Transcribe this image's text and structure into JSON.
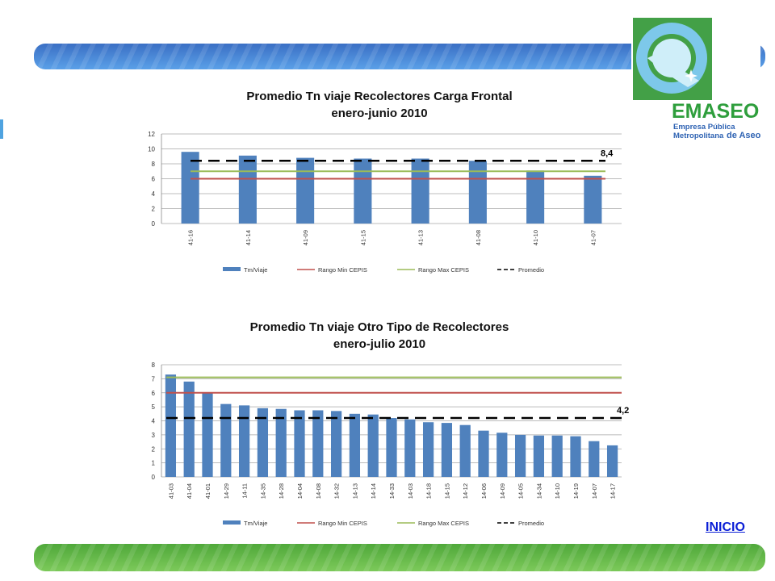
{
  "logo": {
    "name": "EMASEO",
    "line1": "Empresa Pública",
    "line2": "Metropolitana",
    "line2b": "de Aseo"
  },
  "nav": {
    "inicio": "INICIO"
  },
  "colors": {
    "bar": "#4f81bd",
    "min": "#c0504d",
    "max": "#9bbb59",
    "promedio": "#000000"
  },
  "chart_data": [
    {
      "type": "bar",
      "title": "Promedio Tn viaje Recolectores Carga Frontal",
      "subtitle": "enero-junio  2010",
      "categories": [
        "41-16",
        "41-14",
        "41-09",
        "41-15",
        "41-13",
        "41-08",
        "41-10",
        "41-07"
      ],
      "series": [
        {
          "name": "Tm/Viaje",
          "values": [
            9.6,
            9.1,
            8.8,
            8.7,
            8.7,
            8.4,
            7.1,
            6.4
          ]
        },
        {
          "name": "Rango Min CEPIS",
          "values": [
            6,
            6,
            6,
            6,
            6,
            6,
            6,
            6
          ]
        },
        {
          "name": "Rango Max CEPIS",
          "values": [
            7,
            7,
            7,
            7,
            7,
            7,
            7,
            7
          ]
        },
        {
          "name": "Promedio",
          "values": [
            8.4,
            8.4,
            8.4,
            8.4,
            8.4,
            8.4,
            8.4,
            8.4
          ]
        }
      ],
      "annotation": "8,4",
      "ylim": [
        0,
        12
      ],
      "yticks": [
        0,
        2,
        4,
        6,
        8,
        10,
        12
      ],
      "grid": true,
      "legend": "bottom"
    },
    {
      "type": "bar",
      "title": "Promedio Tn viaje Otro Tipo de Recolectores",
      "subtitle": "enero-julio 2010",
      "categories": [
        "41-03",
        "41-04",
        "41-01",
        "14-29",
        "14-11",
        "14-35",
        "14-28",
        "14-04",
        "14-08",
        "14-32",
        "14-13",
        "14-14",
        "14-33",
        "14-03",
        "14-18",
        "14-15",
        "14-12",
        "14-06",
        "14-09",
        "14-05",
        "14-34",
        "14-10",
        "14-19",
        "14-07",
        "14-17"
      ],
      "series": [
        {
          "name": "Tm/Viaje",
          "values": [
            7.3,
            6.8,
            6.0,
            5.2,
            5.1,
            4.9,
            4.85,
            4.75,
            4.75,
            4.7,
            4.5,
            4.45,
            4.2,
            4.1,
            3.9,
            3.85,
            3.7,
            3.3,
            3.15,
            3.0,
            2.95,
            2.95,
            2.9,
            2.55,
            2.25
          ]
        },
        {
          "name": "Rango Min CEPIS",
          "values": [
            6,
            6,
            6,
            6,
            6,
            6,
            6,
            6,
            6,
            6,
            6,
            6,
            6,
            6,
            6,
            6,
            6,
            6,
            6,
            6,
            6,
            6,
            6,
            6,
            6
          ]
        },
        {
          "name": "Rango Max CEPIS",
          "values": [
            7.1,
            7.1,
            7.1,
            7.1,
            7.1,
            7.1,
            7.1,
            7.1,
            7.1,
            7.1,
            7.1,
            7.1,
            7.1,
            7.1,
            7.1,
            7.1,
            7.1,
            7.1,
            7.1,
            7.1,
            7.1,
            7.1,
            7.1,
            7.1,
            7.1
          ]
        },
        {
          "name": "Promedio",
          "values": [
            4.2,
            4.2,
            4.2,
            4.2,
            4.2,
            4.2,
            4.2,
            4.2,
            4.2,
            4.2,
            4.2,
            4.2,
            4.2,
            4.2,
            4.2,
            4.2,
            4.2,
            4.2,
            4.2,
            4.2,
            4.2,
            4.2,
            4.2,
            4.2,
            4.2
          ]
        }
      ],
      "annotation": "4,2",
      "ylim": [
        0,
        8
      ],
      "yticks": [
        0,
        1,
        2,
        3,
        4,
        5,
        6,
        7,
        8
      ],
      "grid": true,
      "legend": "bottom"
    }
  ]
}
